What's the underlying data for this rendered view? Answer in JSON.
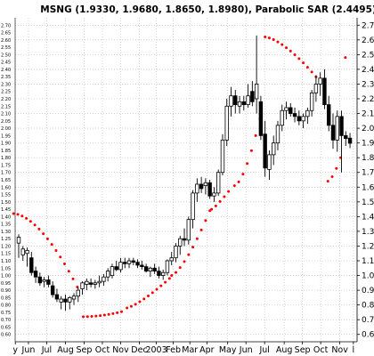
{
  "chart_data": {
    "type": "candlestick",
    "title": "MSNG (1.9330, 1.9680, 1.8650, 1.8980), Parabolic SAR (2.4495)",
    "ylim": [
      0.55,
      2.75
    ],
    "y_ticks_right": [
      "2.7",
      "2.6",
      "2.5",
      "2.4",
      "2.3",
      "2.2",
      "2.1",
      "2.0",
      "1.9",
      "1.8",
      "1.7",
      "1.6",
      "1.5",
      "1.4",
      "1.3",
      "1.2",
      "1.1",
      "1.0",
      "0.9",
      "0.8",
      "0.7",
      "0.6"
    ],
    "y_ticks_left": [
      "2.70",
      "2.65",
      "2.60",
      "2.55",
      "2.50",
      "2.45",
      "2.40",
      "2.35",
      "2.30",
      "2.25",
      "2.20",
      "2.15",
      "2.10",
      "2.05",
      "2.00",
      "1.95",
      "1.90",
      "1.85",
      "1.80",
      "1.75",
      "1.70",
      "1.65",
      "1.60",
      "1.55",
      "1.50",
      "1.45",
      "1.40",
      "1.35",
      "1.30",
      "1.25",
      "1.20",
      "1.15",
      "1.10",
      "1.05",
      "1.00",
      "0.95",
      "0.90",
      "0.85",
      "0.80",
      "0.75",
      "0.70",
      "0.65",
      "0.60"
    ],
    "x_ticks": [
      {
        "label": "y",
        "bar": -0.8
      },
      {
        "label": "Jun",
        "bar": 2.3
      },
      {
        "label": "Jul",
        "bar": 6.6
      },
      {
        "label": "Aug",
        "bar": 11.0
      },
      {
        "label": "Sep",
        "bar": 15.4
      },
      {
        "label": "Oct",
        "bar": 19.7
      },
      {
        "label": "Nov",
        "bar": 24.0
      },
      {
        "label": "Dec",
        "bar": 28.4
      },
      {
        "label": "2003",
        "bar": 32.4
      },
      {
        "label": "Feb",
        "bar": 36.4
      },
      {
        "label": "Mar",
        "bar": 40.3
      },
      {
        "label": "Apr",
        "bar": 44.3
      },
      {
        "label": "May",
        "bar": 49.2
      },
      {
        "label": "Jun",
        "bar": 53.5
      },
      {
        "label": "Jul",
        "bar": 57.9
      },
      {
        "label": "Aug",
        "bar": 62.5
      },
      {
        "label": "Sep",
        "bar": 66.8
      },
      {
        "label": "Oct",
        "bar": 71.1
      },
      {
        "label": "Nov",
        "bar": 75.6
      },
      {
        "label": "l",
        "bar": 78.8
      }
    ],
    "candles": [
      {
        "o": 1.22,
        "h": 1.28,
        "l": 1.12,
        "c": 1.26
      },
      {
        "o": 1.14,
        "h": 1.2,
        "l": 1.1,
        "c": 1.18
      },
      {
        "o": 1.15,
        "h": 1.19,
        "l": 1.06,
        "c": 1.17
      },
      {
        "o": 1.12,
        "h": 1.16,
        "l": 1.0,
        "c": 1.02
      },
      {
        "o": 1.03,
        "h": 1.06,
        "l": 0.95,
        "c": 0.99
      },
      {
        "o": 0.99,
        "h": 1.02,
        "l": 0.93,
        "c": 0.95
      },
      {
        "o": 0.96,
        "h": 0.99,
        "l": 0.92,
        "c": 0.97
      },
      {
        "o": 0.97,
        "h": 1.0,
        "l": 0.92,
        "c": 0.94
      },
      {
        "o": 0.93,
        "h": 0.96,
        "l": 0.85,
        "c": 0.87
      },
      {
        "o": 0.87,
        "h": 0.91,
        "l": 0.82,
        "c": 0.84
      },
      {
        "o": 0.82,
        "h": 0.86,
        "l": 0.77,
        "c": 0.84
      },
      {
        "o": 0.84,
        "h": 0.87,
        "l": 0.76,
        "c": 0.82
      },
      {
        "o": 0.82,
        "h": 0.86,
        "l": 0.77,
        "c": 0.85
      },
      {
        "o": 0.84,
        "h": 0.88,
        "l": 0.8,
        "c": 0.86
      },
      {
        "o": 0.86,
        "h": 0.92,
        "l": 0.82,
        "c": 0.9
      },
      {
        "o": 0.91,
        "h": 0.96,
        "l": 0.87,
        "c": 0.95
      },
      {
        "o": 0.94,
        "h": 0.98,
        "l": 0.9,
        "c": 0.96
      },
      {
        "o": 0.95,
        "h": 0.98,
        "l": 0.92,
        "c": 0.94
      },
      {
        "o": 0.94,
        "h": 0.97,
        "l": 0.91,
        "c": 0.95
      },
      {
        "o": 0.95,
        "h": 1.0,
        "l": 0.92,
        "c": 0.96
      },
      {
        "o": 0.96,
        "h": 1.01,
        "l": 0.93,
        "c": 0.99
      },
      {
        "o": 0.99,
        "h": 1.05,
        "l": 0.96,
        "c": 1.03
      },
      {
        "o": 1.0,
        "h": 1.08,
        "l": 0.98,
        "c": 1.06
      },
      {
        "o": 1.06,
        "h": 1.1,
        "l": 1.03,
        "c": 1.04
      },
      {
        "o": 1.04,
        "h": 1.12,
        "l": 1.02,
        "c": 1.09
      },
      {
        "o": 1.09,
        "h": 1.12,
        "l": 1.05,
        "c": 1.08
      },
      {
        "o": 1.08,
        "h": 1.12,
        "l": 1.05,
        "c": 1.1
      },
      {
        "o": 1.1,
        "h": 1.12,
        "l": 1.07,
        "c": 1.09
      },
      {
        "o": 1.09,
        "h": 1.11,
        "l": 1.05,
        "c": 1.07
      },
      {
        "o": 1.07,
        "h": 1.1,
        "l": 1.04,
        "c": 1.06
      },
      {
        "o": 1.06,
        "h": 1.08,
        "l": 1.02,
        "c": 1.03
      },
      {
        "o": 1.03,
        "h": 1.06,
        "l": 0.99,
        "c": 1.05
      },
      {
        "o": 1.05,
        "h": 1.08,
        "l": 1.01,
        "c": 1.03
      },
      {
        "o": 1.03,
        "h": 1.06,
        "l": 0.98,
        "c": 1.0
      },
      {
        "o": 1.0,
        "h": 1.04,
        "l": 0.97,
        "c": 1.02
      },
      {
        "o": 1.02,
        "h": 1.11,
        "l": 1.0,
        "c": 1.1
      },
      {
        "o": 1.1,
        "h": 1.16,
        "l": 1.07,
        "c": 1.12
      },
      {
        "o": 1.12,
        "h": 1.22,
        "l": 1.09,
        "c": 1.2
      },
      {
        "o": 1.2,
        "h": 1.27,
        "l": 1.14,
        "c": 1.25
      },
      {
        "o": 1.25,
        "h": 1.32,
        "l": 1.2,
        "c": 1.24
      },
      {
        "o": 1.24,
        "h": 1.4,
        "l": 1.21,
        "c": 1.38
      },
      {
        "o": 1.38,
        "h": 1.58,
        "l": 1.32,
        "c": 1.56
      },
      {
        "o": 1.56,
        "h": 1.66,
        "l": 1.5,
        "c": 1.62
      },
      {
        "o": 1.62,
        "h": 1.67,
        "l": 1.56,
        "c": 1.59
      },
      {
        "o": 1.61,
        "h": 1.66,
        "l": 1.55,
        "c": 1.63
      },
      {
        "o": 1.63,
        "h": 1.65,
        "l": 1.52,
        "c": 1.54
      },
      {
        "o": 1.54,
        "h": 1.6,
        "l": 1.5,
        "c": 1.56
      },
      {
        "o": 1.56,
        "h": 1.72,
        "l": 1.54,
        "c": 1.7
      },
      {
        "o": 1.7,
        "h": 1.96,
        "l": 1.68,
        "c": 1.92
      },
      {
        "o": 1.92,
        "h": 2.2,
        "l": 1.88,
        "c": 2.15
      },
      {
        "o": 2.15,
        "h": 2.28,
        "l": 2.08,
        "c": 2.22
      },
      {
        "o": 2.22,
        "h": 2.26,
        "l": 2.1,
        "c": 2.16
      },
      {
        "o": 2.15,
        "h": 2.22,
        "l": 2.1,
        "c": 2.18
      },
      {
        "o": 2.18,
        "h": 2.22,
        "l": 2.12,
        "c": 2.16
      },
      {
        "o": 2.16,
        "h": 2.3,
        "l": 2.14,
        "c": 2.22
      },
      {
        "o": 2.25,
        "h": 2.32,
        "l": 2.15,
        "c": 2.18
      },
      {
        "o": 2.2,
        "h": 2.63,
        "l": 2.1,
        "c": 2.3
      },
      {
        "o": 2.18,
        "h": 2.22,
        "l": 1.92,
        "c": 1.95
      },
      {
        "o": 1.96,
        "h": 2.05,
        "l": 1.67,
        "c": 1.73
      },
      {
        "o": 1.72,
        "h": 1.85,
        "l": 1.65,
        "c": 1.82
      },
      {
        "o": 1.82,
        "h": 1.95,
        "l": 1.75,
        "c": 1.9
      },
      {
        "o": 1.9,
        "h": 2.05,
        "l": 1.85,
        "c": 2.02
      },
      {
        "o": 2.02,
        "h": 2.16,
        "l": 1.98,
        "c": 2.12
      },
      {
        "o": 2.12,
        "h": 2.18,
        "l": 2.06,
        "c": 2.14
      },
      {
        "o": 2.14,
        "h": 2.17,
        "l": 2.08,
        "c": 2.1
      },
      {
        "o": 2.1,
        "h": 2.14,
        "l": 2.04,
        "c": 2.08
      },
      {
        "o": 2.08,
        "h": 2.12,
        "l": 2.02,
        "c": 2.05
      },
      {
        "o": 2.05,
        "h": 2.1,
        "l": 2.0,
        "c": 2.08
      },
      {
        "o": 2.08,
        "h": 2.14,
        "l": 2.03,
        "c": 2.12
      },
      {
        "o": 2.12,
        "h": 2.26,
        "l": 2.08,
        "c": 2.24
      },
      {
        "o": 2.24,
        "h": 2.36,
        "l": 2.18,
        "c": 2.3
      },
      {
        "o": 2.3,
        "h": 2.38,
        "l": 2.22,
        "c": 2.34
      },
      {
        "o": 2.34,
        "h": 2.4,
        "l": 2.13,
        "c": 2.16
      },
      {
        "o": 2.16,
        "h": 2.22,
        "l": 1.98,
        "c": 2.02
      },
      {
        "o": 2.02,
        "h": 2.1,
        "l": 1.86,
        "c": 1.92
      },
      {
        "o": 1.92,
        "h": 2.12,
        "l": 1.84,
        "c": 2.08
      },
      {
        "o": 2.08,
        "h": 2.12,
        "l": 1.7,
        "c": 1.95
      },
      {
        "o": 1.95,
        "h": 1.98,
        "l": 1.88,
        "c": 1.93
      },
      {
        "o": 1.933,
        "h": 1.968,
        "l": 1.865,
        "c": 1.898
      }
    ],
    "parabolic_sar": [
      {
        "from": -1.2,
        "to": 14.0,
        "start": 1.42,
        "end": 0.91,
        "curve": 1.7,
        "side": "above"
      },
      {
        "from": 15.2,
        "to": 25.0,
        "start": 0.72,
        "end": 0.76,
        "curve": 1.9,
        "side": "below"
      },
      {
        "from": 25.5,
        "to": 35.5,
        "start": 0.78,
        "end": 0.98,
        "curve": 1.3,
        "side": "below"
      },
      {
        "from": 36.0,
        "to": 45.0,
        "start": 1.0,
        "end": 1.44,
        "curve": 1.4,
        "side": "below"
      },
      {
        "from": 45.4,
        "to": 50.2,
        "start": 1.45,
        "end": 1.6,
        "curve": 1.2,
        "side": "below"
      },
      {
        "from": 50.8,
        "to": 57.0,
        "start": 1.61,
        "end": 2.09,
        "curve": 1.6,
        "side": "below"
      },
      {
        "from": 58.0,
        "to": 72.5,
        "start": 2.62,
        "end": 2.26,
        "curve": 1.5,
        "side": "above"
      },
      {
        "from": 72.8,
        "to": 76.5,
        "start": 1.64,
        "end": 1.86,
        "curve": 1.5,
        "side": "below"
      },
      {
        "from": 76.9,
        "to": 77.8,
        "start": 2.48,
        "end": 2.45,
        "curve": 1.0,
        "side": "above"
      }
    ],
    "colors": {
      "up_body": "#ffffff",
      "down_body": "#000000",
      "wick": "#000000",
      "sar": "#ff0000",
      "grid": "#b8b8b8"
    }
  }
}
